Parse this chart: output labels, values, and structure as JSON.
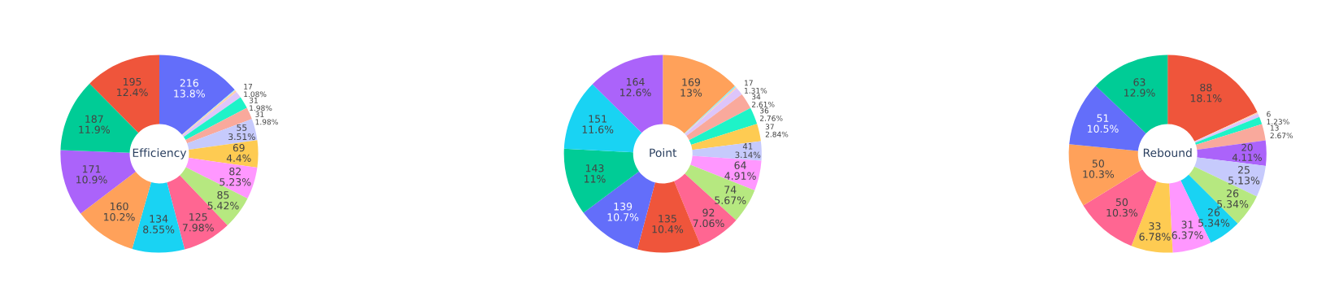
{
  "chart_data": [
    {
      "type": "donut",
      "title": "Efficiency",
      "categories": [
        null,
        null,
        null,
        null,
        null,
        null,
        null,
        null,
        null,
        null,
        null,
        null,
        null,
        null,
        null,
        null
      ],
      "values": [
        216,
        2,
        5,
        17,
        31,
        31,
        55,
        69,
        82,
        85,
        125,
        134,
        160,
        171,
        187,
        195
      ],
      "colors": [
        "#636efa",
        "#8ae9f9",
        "#ffd0ad",
        "#ddc5fa",
        "#1ef3c8",
        "#f9a99c",
        "#c6cafc",
        "#fecb52",
        "#ff97ff",
        "#b6e880",
        "#ff6692",
        "#19d3f3",
        "#ffa15a",
        "#ab63fa",
        "#00cc96",
        "#ef553b"
      ],
      "value_labels": [
        "216\n13.8%",
        null,
        null,
        "17\n1.08%",
        "31\n1.98%",
        "31\n1.98%",
        "55\n3.51%",
        "69\n4.4%",
        "82\n5.23%",
        "85\n5.42%",
        "125\n7.98%",
        "134\n8.55%",
        "160\n10.2%",
        "171\n10.9%",
        "187\n11.9%",
        "195\n12.4%"
      ]
    },
    {
      "type": "donut",
      "title": "Point",
      "categories": [
        null,
        null,
        null,
        null,
        null,
        null,
        null,
        null,
        null,
        null,
        null,
        null,
        null,
        null,
        null,
        null
      ],
      "values": [
        169,
        3,
        3,
        17,
        34,
        36,
        37,
        41,
        64,
        74,
        92,
        135,
        139,
        143,
        151,
        164
      ],
      "colors": [
        "#ffa15a",
        "#8ae9f9",
        "#ffd0ad",
        "#ddc5fa",
        "#f9a99c",
        "#1ef3c8",
        "#fecb52",
        "#c6cafc",
        "#ff97ff",
        "#b6e880",
        "#ff6692",
        "#ef553b",
        "#636efa",
        "#00cc96",
        "#19d3f3",
        "#ab63fa"
      ],
      "value_labels": [
        "169\n13%",
        null,
        null,
        "17\n1.31%",
        "34\n2.61%",
        "36\n2.76%",
        "37\n2.84%",
        "41\n3.14%",
        "64\n4.91%",
        "74\n5.67%",
        "92\n7.06%",
        "135\n10.4%",
        "139\n10.7%",
        "143\n11%",
        "151\n11.6%",
        "164\n12.6%"
      ]
    },
    {
      "type": "donut",
      "title": "Rebound",
      "categories": [
        null,
        null,
        null,
        null,
        null,
        null,
        null,
        null,
        null,
        null,
        null,
        null,
        null,
        null,
        null
      ],
      "values": [
        88,
        1,
        3,
        6,
        13,
        20,
        25,
        26,
        26,
        31,
        33,
        50,
        50,
        51,
        63
      ],
      "colors": [
        "#ef553b",
        "#ffd0ad",
        "#ddc5fa",
        "#1ef3c8",
        "#f9a99c",
        "#ab63fa",
        "#c6cafc",
        "#b6e880",
        "#19d3f3",
        "#ff97ff",
        "#fecb52",
        "#ff6692",
        "#ffa15a",
        "#636efa",
        "#00cc96"
      ],
      "value_labels": [
        "88\n18.1%",
        null,
        null,
        "6\n1.23%",
        "13\n2.67%",
        "20\n4.11%",
        "25\n5.13%",
        "26\n5.34%",
        "26\n5.34%",
        "31\n6.37%",
        "33\n6.78%",
        "50\n10.3%",
        "50\n10.3%",
        "51\n10.5%",
        "63\n12.9%"
      ]
    }
  ]
}
